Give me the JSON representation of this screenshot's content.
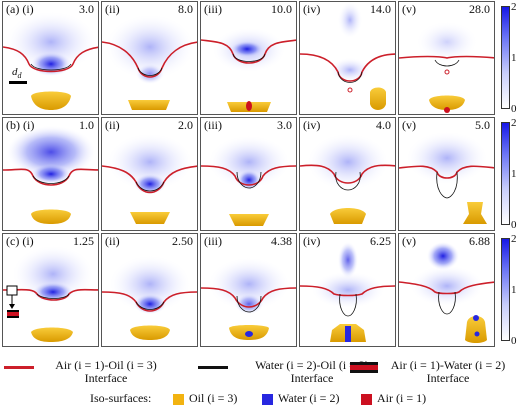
{
  "rows": [
    {
      "row": "(a)",
      "panels": [
        {
          "label": "(i)",
          "time": "3.0"
        },
        {
          "label": "(ii)",
          "time": "8.0"
        },
        {
          "label": "(iii)",
          "time": "10.0"
        },
        {
          "label": "(iv)",
          "time": "14.0"
        },
        {
          "label": "(v)",
          "time": "28.0"
        }
      ]
    },
    {
      "row": "(b)",
      "panels": [
        {
          "label": "(i)",
          "time": "1.0"
        },
        {
          "label": "(ii)",
          "time": "2.0"
        },
        {
          "label": "(iii)",
          "time": "3.0"
        },
        {
          "label": "(iv)",
          "time": "4.0"
        },
        {
          "label": "(v)",
          "time": "5.0"
        }
      ]
    },
    {
      "row": "(c)",
      "panels": [
        {
          "label": "(i)",
          "time": "1.25"
        },
        {
          "label": "(ii)",
          "time": "2.50"
        },
        {
          "label": "(iii)",
          "time": "4.38"
        },
        {
          "label": "(iv)",
          "time": "6.25"
        },
        {
          "label": "(v)",
          "time": "6.88"
        }
      ]
    }
  ],
  "scale_label": "d",
  "scale_sub": "d",
  "colorbar_ticks": [
    "2",
    "1",
    "0"
  ],
  "legend": {
    "air_oil": {
      "line1": "Air (i = 1)-Oil (i = 3)",
      "line2": "Interface"
    },
    "water_oil": {
      "line1": "Water (i = 2)-Oil (i = 3)",
      "line2": "Interface"
    },
    "air_water": {
      "line1": "Air (i = 1)-Water (i = 2)",
      "line2": "Interface"
    }
  },
  "iso": {
    "title": "Iso-surfaces:",
    "oil": "Oil (i = 3)",
    "water": "Water (i = 2)",
    "air": "Air (i = 1)"
  },
  "colors": {
    "air_oil_line": "#cc1f2a",
    "water_oil_line": "#111111",
    "oil": "#f2b311",
    "water": "#2727e0",
    "air": "#cc1020"
  }
}
